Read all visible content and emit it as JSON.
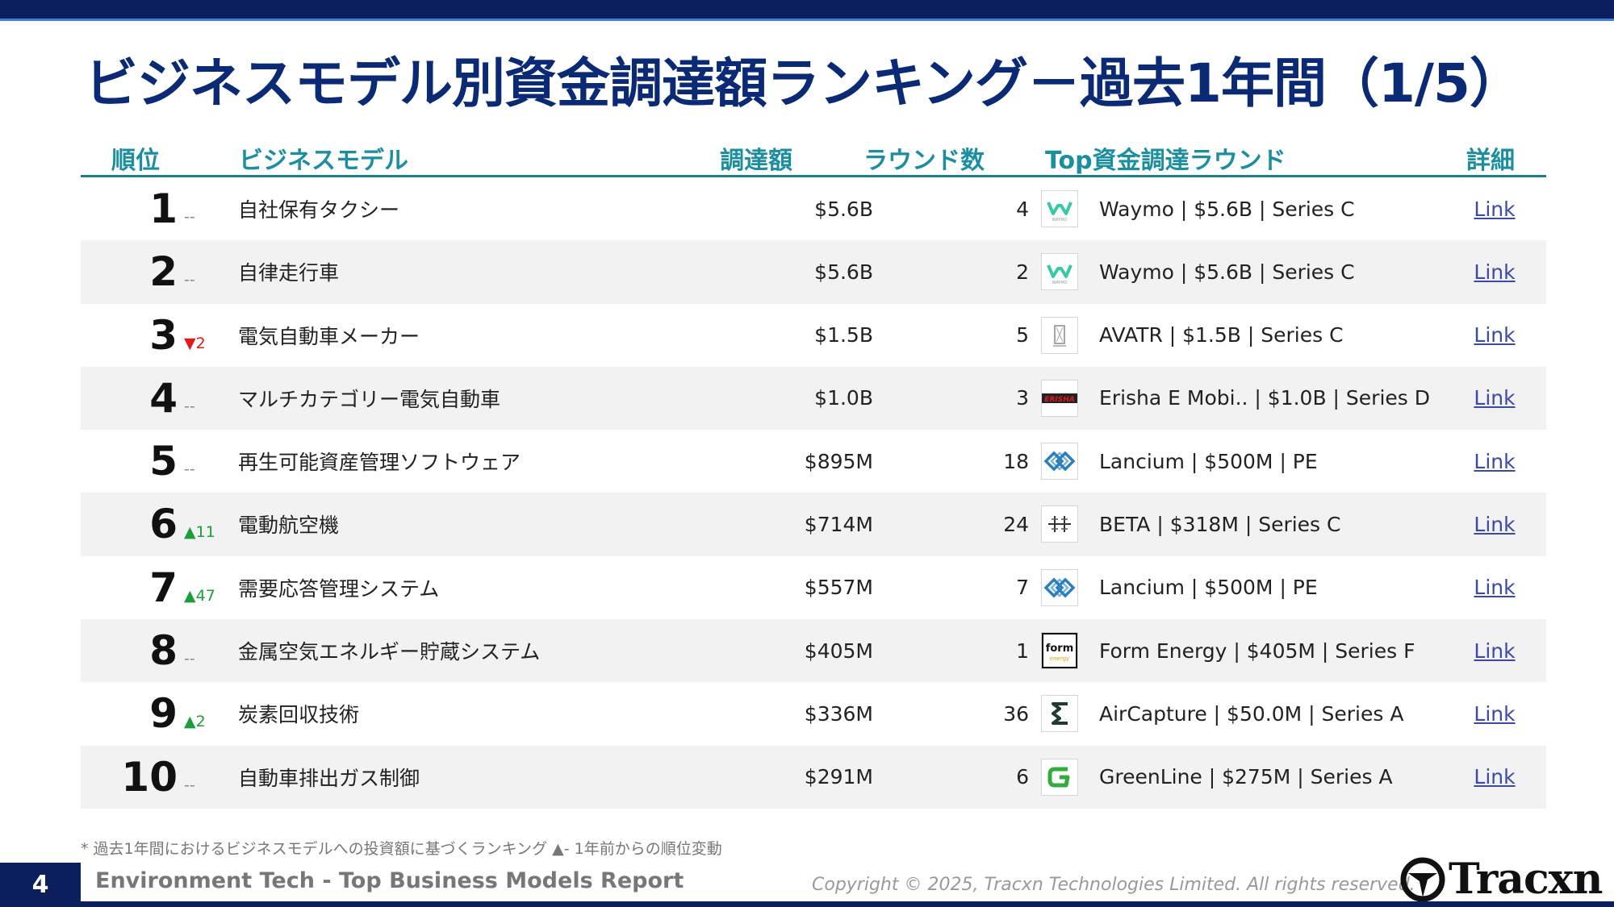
{
  "title": "ビジネスモデル別資金調達額ランキング－過去1年間（1/5）",
  "table": {
    "headers": {
      "rank": "順位",
      "model": "ビジネスモデル",
      "amount": "調達額",
      "rounds": "ラウンド数",
      "top_round": "Top資金調達ラウンド",
      "detail": "詳細"
    },
    "rows": [
      {
        "rank": "1",
        "change": "--",
        "change_dir": "none",
        "model": "自社保有タクシー",
        "amount": "$5.6B",
        "rounds": "4",
        "logo_icon": "waymo-logo-icon",
        "top_round": "Waymo | $5.6B | Series C",
        "detail": "Link"
      },
      {
        "rank": "2",
        "change": "--",
        "change_dir": "none",
        "model": "自律走行車",
        "amount": "$5.6B",
        "rounds": "2",
        "logo_icon": "waymo-logo-icon",
        "top_round": "Waymo | $5.6B | Series C",
        "detail": "Link"
      },
      {
        "rank": "3",
        "change": "▼2",
        "change_dir": "down",
        "model": "電気自動車メーカー",
        "amount": "$1.5B",
        "rounds": "5",
        "logo_icon": "avatr-logo-icon",
        "top_round": "AVATR | $1.5B | Series C",
        "detail": "Link"
      },
      {
        "rank": "4",
        "change": "--",
        "change_dir": "none",
        "model": "マルチカテゴリー電気自動車",
        "amount": "$1.0B",
        "rounds": "3",
        "logo_icon": "erisha-logo-icon",
        "top_round": "Erisha E Mobi.. | $1.0B | Series D",
        "detail": "Link"
      },
      {
        "rank": "5",
        "change": "--",
        "change_dir": "none",
        "model": "再生可能資産管理ソフトウェア",
        "amount": "$895M",
        "rounds": "18",
        "logo_icon": "lancium-logo-icon",
        "top_round": "Lancium | $500M | PE",
        "detail": "Link"
      },
      {
        "rank": "6",
        "change": "▲11",
        "change_dir": "up",
        "model": "電動航空機",
        "amount": "$714M",
        "rounds": "24",
        "logo_icon": "beta-logo-icon",
        "top_round": "BETA | $318M | Series C",
        "detail": "Link"
      },
      {
        "rank": "7",
        "change": "▲47",
        "change_dir": "up",
        "model": "需要応答管理システム",
        "amount": "$557M",
        "rounds": "7",
        "logo_icon": "lancium-logo-icon",
        "top_round": "Lancium | $500M | PE",
        "detail": "Link"
      },
      {
        "rank": "8",
        "change": "--",
        "change_dir": "none",
        "model": "金属空気エネルギー貯蔵システム",
        "amount": "$405M",
        "rounds": "1",
        "logo_icon": "form-energy-logo-icon",
        "top_round": "Form Energy | $405M | Series F",
        "detail": "Link"
      },
      {
        "rank": "9",
        "change": "▲2",
        "change_dir": "up",
        "model": "炭素回収技術",
        "amount": "$336M",
        "rounds": "36",
        "logo_icon": "aircapture-logo-icon",
        "top_round": "AirCapture | $50.0M | Series A",
        "detail": "Link"
      },
      {
        "rank": "10",
        "change": "--",
        "change_dir": "none",
        "model": "自動車排出ガス制御",
        "amount": "$291M",
        "rounds": "6",
        "logo_icon": "greenline-logo-icon",
        "top_round": "GreenLine | $275M | Series A",
        "detail": "Link"
      }
    ]
  },
  "logo_texts": {
    "waymo": "WAYMO",
    "erisha": "ERISHA",
    "form_top": "form",
    "form_bottom": "energy"
  },
  "footnote": "* 過去1年間におけるビジネスモデルへの投資額に基づくランキング ▲- 1年前からの順位変動",
  "footer": {
    "page_number": "4",
    "report_name": "Environment Tech - Top Business Models Report",
    "copyright": "Copyright © 2025, Tracxn Technologies Limited. All rights reserved.",
    "brand": "Tracxn"
  },
  "colors": {
    "navy": "#0b1f5c",
    "title": "#0b2a75",
    "header_teal": "#1b8ea0",
    "up": "#1a9e3a",
    "down": "#e01b1b",
    "link": "#3b4aa6"
  }
}
